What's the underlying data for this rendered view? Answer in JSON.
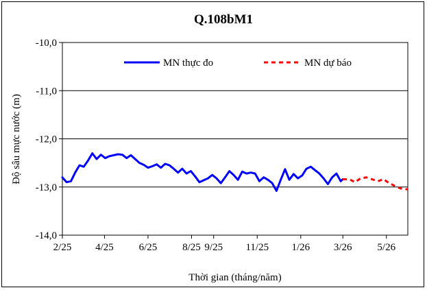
{
  "chart_data": {
    "type": "line",
    "title": "Q.108bM1",
    "xlabel": "Thời gian (tháng/năm)",
    "ylabel": "Độ sâu mực nước (m)",
    "ylim": [
      -14.0,
      -10.0
    ],
    "yticks": [
      -10.0,
      -11.0,
      -12.0,
      -13.0,
      -14.0
    ],
    "ytick_labels": [
      "-10,0",
      "-11,0",
      "-12,0",
      "-13,0",
      "-14,0"
    ],
    "xlim": [
      "2025-02-01",
      "2026-05-31"
    ],
    "xticks": [
      "2025-02-01",
      "2025-04-01",
      "2025-06-01",
      "2025-08-01",
      "2025-09-01",
      "2025-11-01",
      "2026-01-01",
      "2026-03-01",
      "2026-05-01"
    ],
    "xtick_labels": [
      "2/25",
      "4/25",
      "6/25",
      "8/25",
      "9/25",
      "11/25",
      "1/26",
      "3/26",
      "5/26"
    ],
    "grid": "horizontal",
    "legend": "top",
    "series": [
      {
        "name": "MN thực đo",
        "color": "#0000ff",
        "style": "solid",
        "points": [
          [
            "2025-02-01",
            -12.8
          ],
          [
            "2025-02-07",
            -12.9
          ],
          [
            "2025-02-13",
            -12.88
          ],
          [
            "2025-02-19",
            -12.7
          ],
          [
            "2025-02-25",
            -12.55
          ],
          [
            "2025-03-03",
            -12.58
          ],
          [
            "2025-03-09",
            -12.45
          ],
          [
            "2025-03-15",
            -12.3
          ],
          [
            "2025-03-21",
            -12.42
          ],
          [
            "2025-03-27",
            -12.33
          ],
          [
            "2025-04-02",
            -12.4
          ],
          [
            "2025-04-08",
            -12.36
          ],
          [
            "2025-04-14",
            -12.34
          ],
          [
            "2025-04-20",
            -12.32
          ],
          [
            "2025-04-26",
            -12.33
          ],
          [
            "2025-05-02",
            -12.4
          ],
          [
            "2025-05-08",
            -12.34
          ],
          [
            "2025-05-14",
            -12.42
          ],
          [
            "2025-05-20",
            -12.5
          ],
          [
            "2025-05-26",
            -12.54
          ],
          [
            "2025-06-01",
            -12.6
          ],
          [
            "2025-06-07",
            -12.57
          ],
          [
            "2025-06-13",
            -12.53
          ],
          [
            "2025-06-19",
            -12.6
          ],
          [
            "2025-06-25",
            -12.52
          ],
          [
            "2025-07-01",
            -12.55
          ],
          [
            "2025-07-07",
            -12.62
          ],
          [
            "2025-07-13",
            -12.7
          ],
          [
            "2025-07-19",
            -12.62
          ],
          [
            "2025-07-25",
            -12.72
          ],
          [
            "2025-07-31",
            -12.67
          ],
          [
            "2025-08-06",
            -12.78
          ],
          [
            "2025-08-12",
            -12.9
          ],
          [
            "2025-08-18",
            -12.86
          ],
          [
            "2025-08-24",
            -12.82
          ],
          [
            "2025-08-30",
            -12.75
          ],
          [
            "2025-09-05",
            -12.82
          ],
          [
            "2025-09-11",
            -12.92
          ],
          [
            "2025-09-17",
            -12.8
          ],
          [
            "2025-09-23",
            -12.67
          ],
          [
            "2025-09-29",
            -12.75
          ],
          [
            "2025-10-05",
            -12.85
          ],
          [
            "2025-10-11",
            -12.68
          ],
          [
            "2025-10-17",
            -12.72
          ],
          [
            "2025-10-23",
            -12.7
          ],
          [
            "2025-10-29",
            -12.72
          ],
          [
            "2025-11-04",
            -12.88
          ],
          [
            "2025-11-10",
            -12.8
          ],
          [
            "2025-11-16",
            -12.85
          ],
          [
            "2025-11-22",
            -12.92
          ],
          [
            "2025-11-28",
            -13.08
          ],
          [
            "2025-12-04",
            -12.85
          ],
          [
            "2025-12-10",
            -12.63
          ],
          [
            "2025-12-16",
            -12.85
          ],
          [
            "2025-12-22",
            -12.73
          ],
          [
            "2025-12-28",
            -12.82
          ],
          [
            "2026-01-03",
            -12.76
          ],
          [
            "2026-01-09",
            -12.62
          ],
          [
            "2026-01-15",
            -12.58
          ],
          [
            "2026-01-21",
            -12.65
          ],
          [
            "2026-01-27",
            -12.72
          ],
          [
            "2026-02-02",
            -12.82
          ],
          [
            "2026-02-08",
            -12.94
          ],
          [
            "2026-02-14",
            -12.8
          ],
          [
            "2026-02-20",
            -12.72
          ],
          [
            "2026-02-26",
            -12.88
          ],
          [
            "2026-03-01",
            -12.84
          ]
        ]
      },
      {
        "name": "MN dự báo",
        "color": "#ff0000",
        "style": "dashed",
        "points": [
          [
            "2026-03-01",
            -12.84
          ],
          [
            "2026-03-10",
            -12.84
          ],
          [
            "2026-03-18",
            -12.9
          ],
          [
            "2026-03-26",
            -12.82
          ],
          [
            "2026-04-03",
            -12.8
          ],
          [
            "2026-04-11",
            -12.84
          ],
          [
            "2026-04-19",
            -12.88
          ],
          [
            "2026-04-27",
            -12.84
          ],
          [
            "2026-05-05",
            -12.92
          ],
          [
            "2026-05-13",
            -12.98
          ],
          [
            "2026-05-21",
            -13.03
          ],
          [
            "2026-05-31",
            -13.05
          ]
        ]
      }
    ]
  }
}
